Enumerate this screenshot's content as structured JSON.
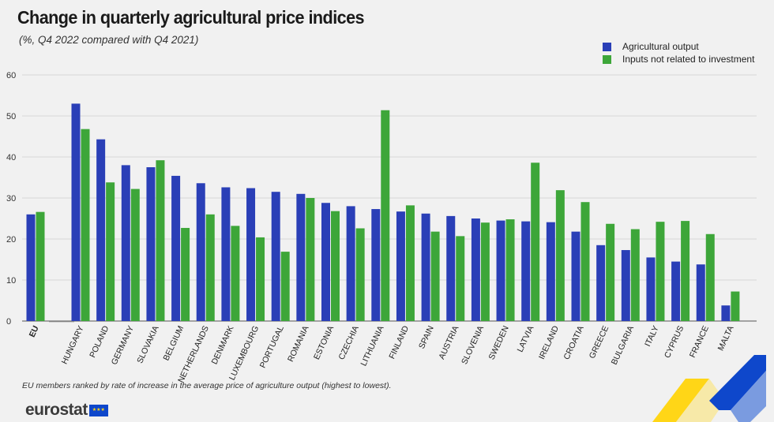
{
  "title": "Change in quarterly agricultural price indices",
  "subtitle": "(%, Q4 2022 compared with Q4 2021)",
  "footnote": "EU members ranked by rate of increase in the average price of agriculture output (highest to lowest).",
  "logo": {
    "text": "eurostat",
    "flag_icon": "eu-flag-icon"
  },
  "colors": {
    "agricultural_output": "#2a3fb7",
    "inputs": "#3da639",
    "background": "#f1f1f1",
    "grid": "#d6d6d6",
    "deco_blue": "#0e47cb",
    "deco_yellow": "#ffd617"
  },
  "legend": [
    {
      "label": "Agricultural output",
      "series": "agricultural_output"
    },
    {
      "label": "Inputs not related to investment",
      "series": "inputs"
    }
  ],
  "chart_data": {
    "type": "bar",
    "title": "Change in quarterly agricultural price indices",
    "subtitle": "(%, Q4 2022 compared with Q4 2021)",
    "xlabel": "",
    "ylabel": "",
    "ylim": [
      0,
      60
    ],
    "yticks": [
      0,
      10,
      20,
      30,
      40,
      50,
      60
    ],
    "grid": true,
    "legend_position": "top-right",
    "categories": [
      "EU",
      "HUNGARY",
      "POLAND",
      "GERMANY",
      "SLOVAKIA",
      "BELGIUM",
      "NETHERLANDS",
      "DENMARK",
      "LUXEMBOURG",
      "PORTUGAL",
      "ROMANIA",
      "ESTONIA",
      "CZECHIA",
      "LITHUANIA",
      "FINLAND",
      "SPAIN",
      "AUSTRIA",
      "SLOVENIA",
      "SWEDEN",
      "LATVIA",
      "IRELAND",
      "CROATIA",
      "GREECE",
      "BULGARIA",
      "ITALY",
      "CYPRUS",
      "FRANCE",
      "MALTA"
    ],
    "series": [
      {
        "name": "Agricultural output",
        "values": [
          26.0,
          53.0,
          44.3,
          38.0,
          37.5,
          35.4,
          33.6,
          32.6,
          32.4,
          31.5,
          31.0,
          28.8,
          28.0,
          27.3,
          26.7,
          26.2,
          25.6,
          25.0,
          24.5,
          24.3,
          24.1,
          21.8,
          18.5,
          17.3,
          15.5,
          14.5,
          13.8,
          3.8
        ]
      },
      {
        "name": "Inputs not related to investment",
        "values": [
          26.6,
          46.8,
          33.8,
          32.2,
          39.2,
          22.7,
          26.0,
          23.2,
          20.4,
          16.9,
          30.0,
          26.8,
          22.6,
          51.4,
          28.2,
          21.8,
          20.7,
          24.0,
          24.8,
          38.6,
          31.9,
          29.0,
          23.7,
          22.4,
          24.2,
          24.4,
          21.2,
          7.2
        ]
      }
    ]
  }
}
